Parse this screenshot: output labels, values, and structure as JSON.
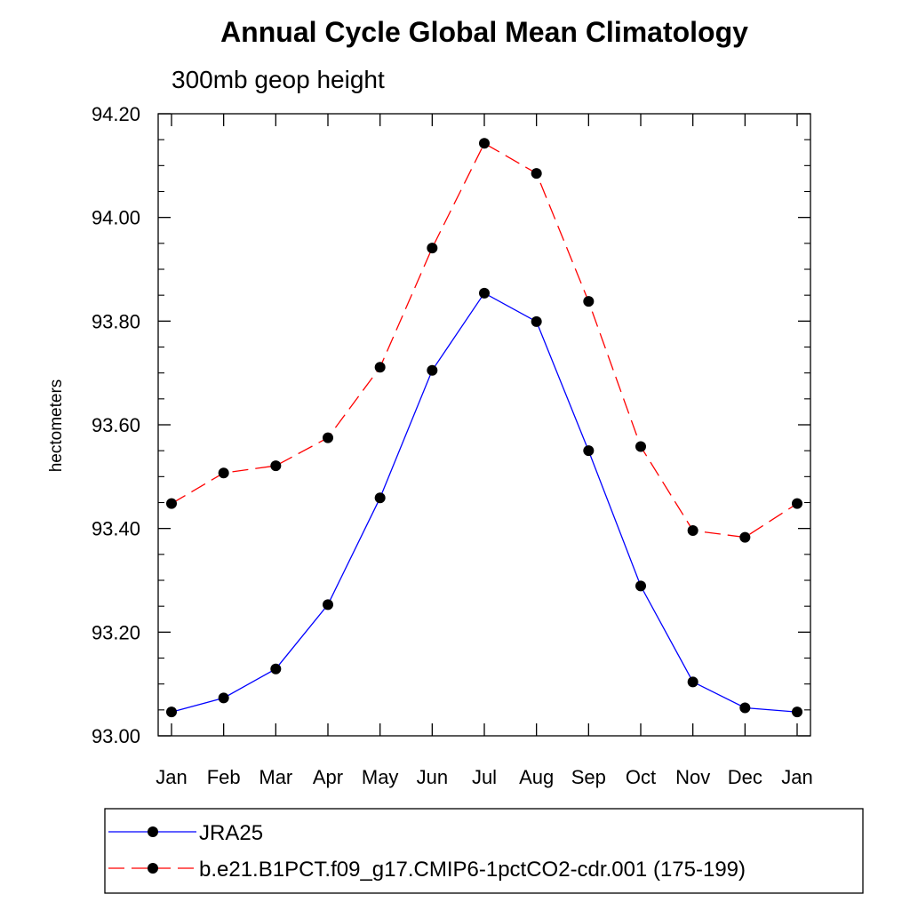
{
  "chart_data": {
    "type": "line",
    "title": "Annual Cycle Global Mean Climatology",
    "subtitle": "300mb geop height",
    "xlabel": "",
    "ylabel": "hectometers",
    "categories": [
      "Jan",
      "Feb",
      "Mar",
      "Apr",
      "May",
      "Jun",
      "Jul",
      "Aug",
      "Sep",
      "Oct",
      "Nov",
      "Dec",
      "Jan"
    ],
    "ylim": [
      93.0,
      94.2
    ],
    "yticks": [
      "93.00",
      "93.20",
      "93.40",
      "93.60",
      "93.80",
      "94.00",
      "94.20"
    ],
    "grid": false,
    "legend_position": "bottom",
    "series": [
      {
        "name": "JRA25",
        "color": "#0000ff",
        "dash": "solid",
        "marker": "filled-circle",
        "values": [
          93.046,
          93.073,
          93.129,
          93.253,
          93.459,
          93.705,
          93.854,
          93.799,
          93.55,
          93.289,
          93.104,
          93.054,
          93.046
        ]
      },
      {
        "name": "b.e21.B1PCT.f09_g17.CMIP6-1pctCO2-cdr.001 (175-199)",
        "color": "#ff0000",
        "dash": "dashed",
        "marker": "filled-circle",
        "values": [
          93.448,
          93.507,
          93.521,
          93.575,
          93.711,
          93.941,
          94.143,
          94.085,
          93.838,
          93.558,
          93.396,
          93.383,
          93.448
        ]
      }
    ]
  }
}
